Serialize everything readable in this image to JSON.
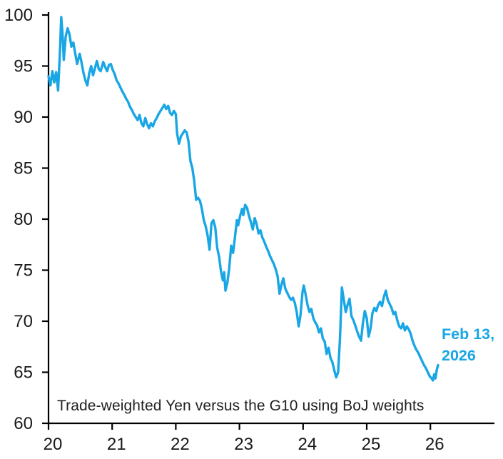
{
  "chart_data": {
    "type": "line",
    "title": "Trade-weighted Yen versus the G10 using BoJ weights",
    "title_position": "inside-bottom-left",
    "xlabel": "",
    "ylabel": "",
    "xlim": [
      20,
      27.0
    ],
    "ylim": [
      60,
      100
    ],
    "x_ticks": [
      20,
      21,
      22,
      23,
      24,
      25,
      26
    ],
    "y_ticks": [
      60,
      65,
      70,
      75,
      80,
      85,
      90,
      95,
      100
    ],
    "grid": false,
    "legend": "none",
    "line_color": "#18a6e5",
    "axis_color": "#000000",
    "text_color": "#1a1a1a",
    "annotations": [
      {
        "lines": [
          "Feb 13,",
          "2026"
        ],
        "x": 26.19,
        "y": 69.0,
        "color": "#18a6e5",
        "bold": true
      }
    ],
    "series": [
      {
        "name": "Trade-weighted Yen versus the G10 (BoJ weights)",
        "color": "#18a6e5",
        "points": [
          [
            20.0,
            94.0
          ],
          [
            20.03,
            93.1
          ],
          [
            20.06,
            94.5
          ],
          [
            20.09,
            93.4
          ],
          [
            20.12,
            94.4
          ],
          [
            20.15,
            92.6
          ],
          [
            20.18,
            96.5
          ],
          [
            20.2,
            99.8
          ],
          [
            20.22,
            98.2
          ],
          [
            20.24,
            95.6
          ],
          [
            20.27,
            97.9
          ],
          [
            20.3,
            98.7
          ],
          [
            20.33,
            98.1
          ],
          [
            20.36,
            96.9
          ],
          [
            20.39,
            97.3
          ],
          [
            20.42,
            96.2
          ],
          [
            20.45,
            95.2
          ],
          [
            20.49,
            96.2
          ],
          [
            20.52,
            95.3
          ],
          [
            20.55,
            94.3
          ],
          [
            20.58,
            93.6
          ],
          [
            20.61,
            93.1
          ],
          [
            20.64,
            94.3
          ],
          [
            20.67,
            95.0
          ],
          [
            20.7,
            94.1
          ],
          [
            20.73,
            94.8
          ],
          [
            20.76,
            95.5
          ],
          [
            20.79,
            94.7
          ],
          [
            20.82,
            94.5
          ],
          [
            20.86,
            95.4
          ],
          [
            20.89,
            94.9
          ],
          [
            20.92,
            94.5
          ],
          [
            20.95,
            95.1
          ],
          [
            20.98,
            95.2
          ],
          [
            21.01,
            94.6
          ],
          [
            21.04,
            94.2
          ],
          [
            21.07,
            93.6
          ],
          [
            21.1,
            93.3
          ],
          [
            21.13,
            92.9
          ],
          [
            21.16,
            92.5
          ],
          [
            21.19,
            92.2
          ],
          [
            21.22,
            91.8
          ],
          [
            21.25,
            91.5
          ],
          [
            21.28,
            91.0
          ],
          [
            21.31,
            90.7
          ],
          [
            21.34,
            90.3
          ],
          [
            21.37,
            90.0
          ],
          [
            21.4,
            89.7
          ],
          [
            21.43,
            90.2
          ],
          [
            21.46,
            89.4
          ],
          [
            21.49,
            89.1
          ],
          [
            21.52,
            89.9
          ],
          [
            21.55,
            89.3
          ],
          [
            21.58,
            88.9
          ],
          [
            21.61,
            89.4
          ],
          [
            21.64,
            89.1
          ],
          [
            21.67,
            89.6
          ],
          [
            21.7,
            89.9
          ],
          [
            21.73,
            90.3
          ],
          [
            21.76,
            90.6
          ],
          [
            21.79,
            90.9
          ],
          [
            21.82,
            91.2
          ],
          [
            21.85,
            90.8
          ],
          [
            21.88,
            91.1
          ],
          [
            21.91,
            90.4
          ],
          [
            21.94,
            90.2
          ],
          [
            21.97,
            90.6
          ],
          [
            22.0,
            90.3
          ],
          [
            22.02,
            88.4
          ],
          [
            22.05,
            87.4
          ],
          [
            22.08,
            88.1
          ],
          [
            22.11,
            88.4
          ],
          [
            22.14,
            88.7
          ],
          [
            22.17,
            88.5
          ],
          [
            22.2,
            87.6
          ],
          [
            22.23,
            85.7
          ],
          [
            22.26,
            85.0
          ],
          [
            22.29,
            83.7
          ],
          [
            22.32,
            81.9
          ],
          [
            22.35,
            82.1
          ],
          [
            22.38,
            81.8
          ],
          [
            22.41,
            81.0
          ],
          [
            22.44,
            79.9
          ],
          [
            22.47,
            79.3
          ],
          [
            22.5,
            78.4
          ],
          [
            22.53,
            77.0
          ],
          [
            22.56,
            79.6
          ],
          [
            22.59,
            79.9
          ],
          [
            22.62,
            79.2
          ],
          [
            22.65,
            77.2
          ],
          [
            22.68,
            76.3
          ],
          [
            22.71,
            74.9
          ],
          [
            22.74,
            74.0
          ],
          [
            22.76,
            74.8
          ],
          [
            22.78,
            73.0
          ],
          [
            22.81,
            73.8
          ],
          [
            22.84,
            75.2
          ],
          [
            22.87,
            77.4
          ],
          [
            22.9,
            76.7
          ],
          [
            22.93,
            78.3
          ],
          [
            22.96,
            79.9
          ],
          [
            22.98,
            79.4
          ],
          [
            23.01,
            80.3
          ],
          [
            23.04,
            81.0
          ],
          [
            23.06,
            80.4
          ],
          [
            23.09,
            81.4
          ],
          [
            23.12,
            81.1
          ],
          [
            23.15,
            80.3
          ],
          [
            23.18,
            79.7
          ],
          [
            23.21,
            79.0
          ],
          [
            23.24,
            80.1
          ],
          [
            23.27,
            79.5
          ],
          [
            23.3,
            78.6
          ],
          [
            23.33,
            78.9
          ],
          [
            23.36,
            78.2
          ],
          [
            23.39,
            77.8
          ],
          [
            23.42,
            77.3
          ],
          [
            23.45,
            76.9
          ],
          [
            23.48,
            76.4
          ],
          [
            23.51,
            76.0
          ],
          [
            23.54,
            75.6
          ],
          [
            23.57,
            75.1
          ],
          [
            23.6,
            74.4
          ],
          [
            23.63,
            72.7
          ],
          [
            23.66,
            73.6
          ],
          [
            23.69,
            74.2
          ],
          [
            23.72,
            73.2
          ],
          [
            23.75,
            72.8
          ],
          [
            23.78,
            72.4
          ],
          [
            23.81,
            72.1
          ],
          [
            23.84,
            72.3
          ],
          [
            23.87,
            71.8
          ],
          [
            23.9,
            70.9
          ],
          [
            23.93,
            69.5
          ],
          [
            23.96,
            70.6
          ],
          [
            23.99,
            72.8
          ],
          [
            24.01,
            73.5
          ],
          [
            24.04,
            72.6
          ],
          [
            24.07,
            71.6
          ],
          [
            24.1,
            70.9
          ],
          [
            24.13,
            71.2
          ],
          [
            24.16,
            70.3
          ],
          [
            24.19,
            69.9
          ],
          [
            24.22,
            69.6
          ],
          [
            24.25,
            68.9
          ],
          [
            24.28,
            69.3
          ],
          [
            24.31,
            68.3
          ],
          [
            24.34,
            68.0
          ],
          [
            24.37,
            66.8
          ],
          [
            24.4,
            67.4
          ],
          [
            24.43,
            66.4
          ],
          [
            24.46,
            66.0
          ],
          [
            24.49,
            65.2
          ],
          [
            24.52,
            64.5
          ],
          [
            24.55,
            65.0
          ],
          [
            24.58,
            68.3
          ],
          [
            24.61,
            73.3
          ],
          [
            24.64,
            72.1
          ],
          [
            24.67,
            70.9
          ],
          [
            24.7,
            71.6
          ],
          [
            24.73,
            72.2
          ],
          [
            24.76,
            70.5
          ],
          [
            24.79,
            70.1
          ],
          [
            24.82,
            69.6
          ],
          [
            24.85,
            69.0
          ],
          [
            24.88,
            68.5
          ],
          [
            24.91,
            68.1
          ],
          [
            24.94,
            69.8
          ],
          [
            24.97,
            71.0
          ],
          [
            25.0,
            70.3
          ],
          [
            25.03,
            68.5
          ],
          [
            25.06,
            69.3
          ],
          [
            25.09,
            70.8
          ],
          [
            25.12,
            71.3
          ],
          [
            25.15,
            71.0
          ],
          [
            25.18,
            71.6
          ],
          [
            25.21,
            71.9
          ],
          [
            25.24,
            71.5
          ],
          [
            25.27,
            72.4
          ],
          [
            25.3,
            73.0
          ],
          [
            25.33,
            72.1
          ],
          [
            25.36,
            71.7
          ],
          [
            25.39,
            71.3
          ],
          [
            25.42,
            70.7
          ],
          [
            25.45,
            70.9
          ],
          [
            25.48,
            70.1
          ],
          [
            25.51,
            69.5
          ],
          [
            25.54,
            69.3
          ],
          [
            25.57,
            69.8
          ],
          [
            25.6,
            69.1
          ],
          [
            25.63,
            69.5
          ],
          [
            25.66,
            69.2
          ],
          [
            25.69,
            68.8
          ],
          [
            25.72,
            68.1
          ],
          [
            25.75,
            67.6
          ],
          [
            25.78,
            67.2
          ],
          [
            25.81,
            66.9
          ],
          [
            25.84,
            66.5
          ],
          [
            25.87,
            66.1
          ],
          [
            25.9,
            65.7
          ],
          [
            25.93,
            65.4
          ],
          [
            25.96,
            65.0
          ],
          [
            25.99,
            64.6
          ],
          [
            26.02,
            64.4
          ],
          [
            26.04,
            64.2
          ],
          [
            26.06,
            64.8
          ],
          [
            26.08,
            64.4
          ],
          [
            26.1,
            65.2
          ],
          [
            26.12,
            65.7
          ]
        ]
      }
    ]
  }
}
